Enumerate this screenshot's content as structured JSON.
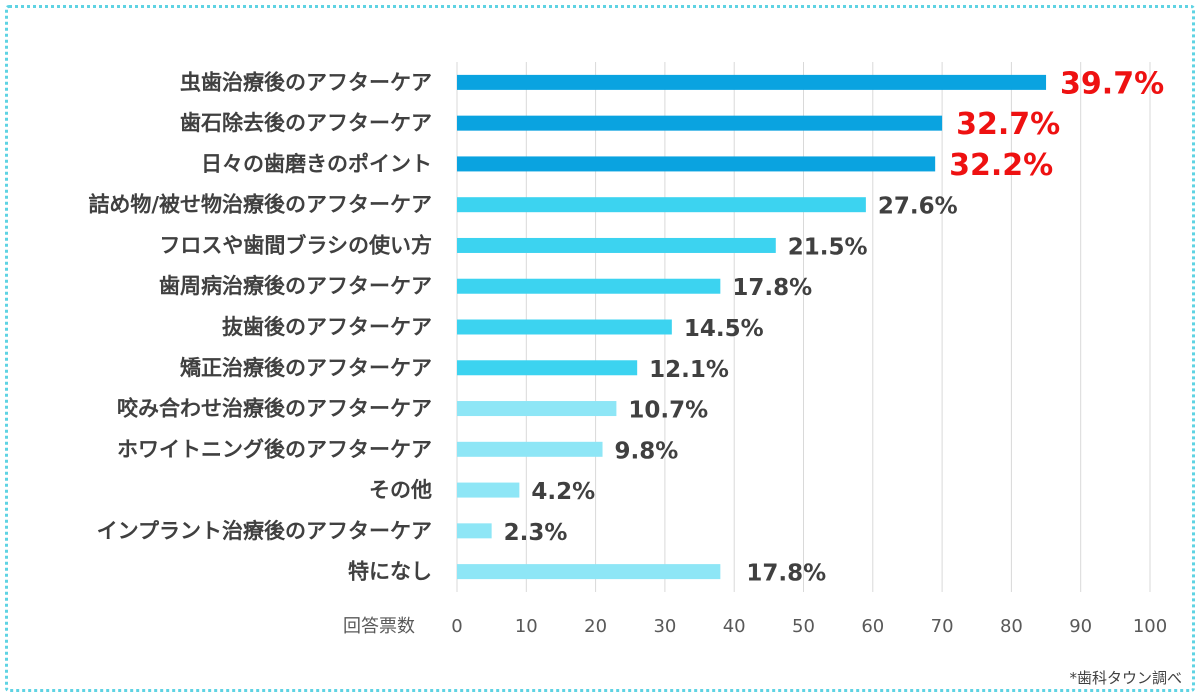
{
  "chart_data": {
    "type": "bar",
    "orientation": "horizontal",
    "categories": [
      "虫歯治療後のアフターケア",
      "歯石除去後のアフターケア",
      "日々の歯磨きのポイント",
      "詰め物/被せ物治療後のアフターケア",
      "フロスや歯間ブラシの使い方",
      "歯周病治療後のアフターケア",
      "抜歯後のアフターケア",
      "矯正治療後のアフターケア",
      "咬み合わせ治療後のアフターケア",
      "ホワイトニング後のアフターケア",
      "その他",
      "インプラント治療後のアフターケア",
      "特になし"
    ],
    "values": [
      85,
      70,
      69,
      59,
      46,
      38,
      31,
      26,
      23,
      21,
      9,
      5,
      38
    ],
    "labels": [
      "39.7%",
      "32.7%",
      "32.2%",
      "27.6%",
      "21.5%",
      "17.8%",
      "14.5%",
      "12.1%",
      "10.7%",
      "9.8%",
      "4.2%",
      "2.3%",
      "17.8%"
    ],
    "highlight_top": 3,
    "xlabel": "回答票数",
    "xlim": [
      0,
      100
    ],
    "xticks": [
      0,
      10,
      20,
      30,
      40,
      50,
      60,
      70,
      80,
      90,
      100
    ],
    "grid": true,
    "colors": [
      "#0aa3e0",
      "#0aa3e0",
      "#0aa3e0",
      "#3cd3f0",
      "#3cd3f0",
      "#3cd3f0",
      "#3cd3f0",
      "#3cd3f0",
      "#8ee6f6",
      "#8ee6f6",
      "#8ee6f6",
      "#8ee6f6",
      "#8ee6f6"
    ],
    "label_colors": {
      "highlight": "#ee1111",
      "normal": "#404040"
    }
  },
  "source": "*歯科タウン調べ"
}
